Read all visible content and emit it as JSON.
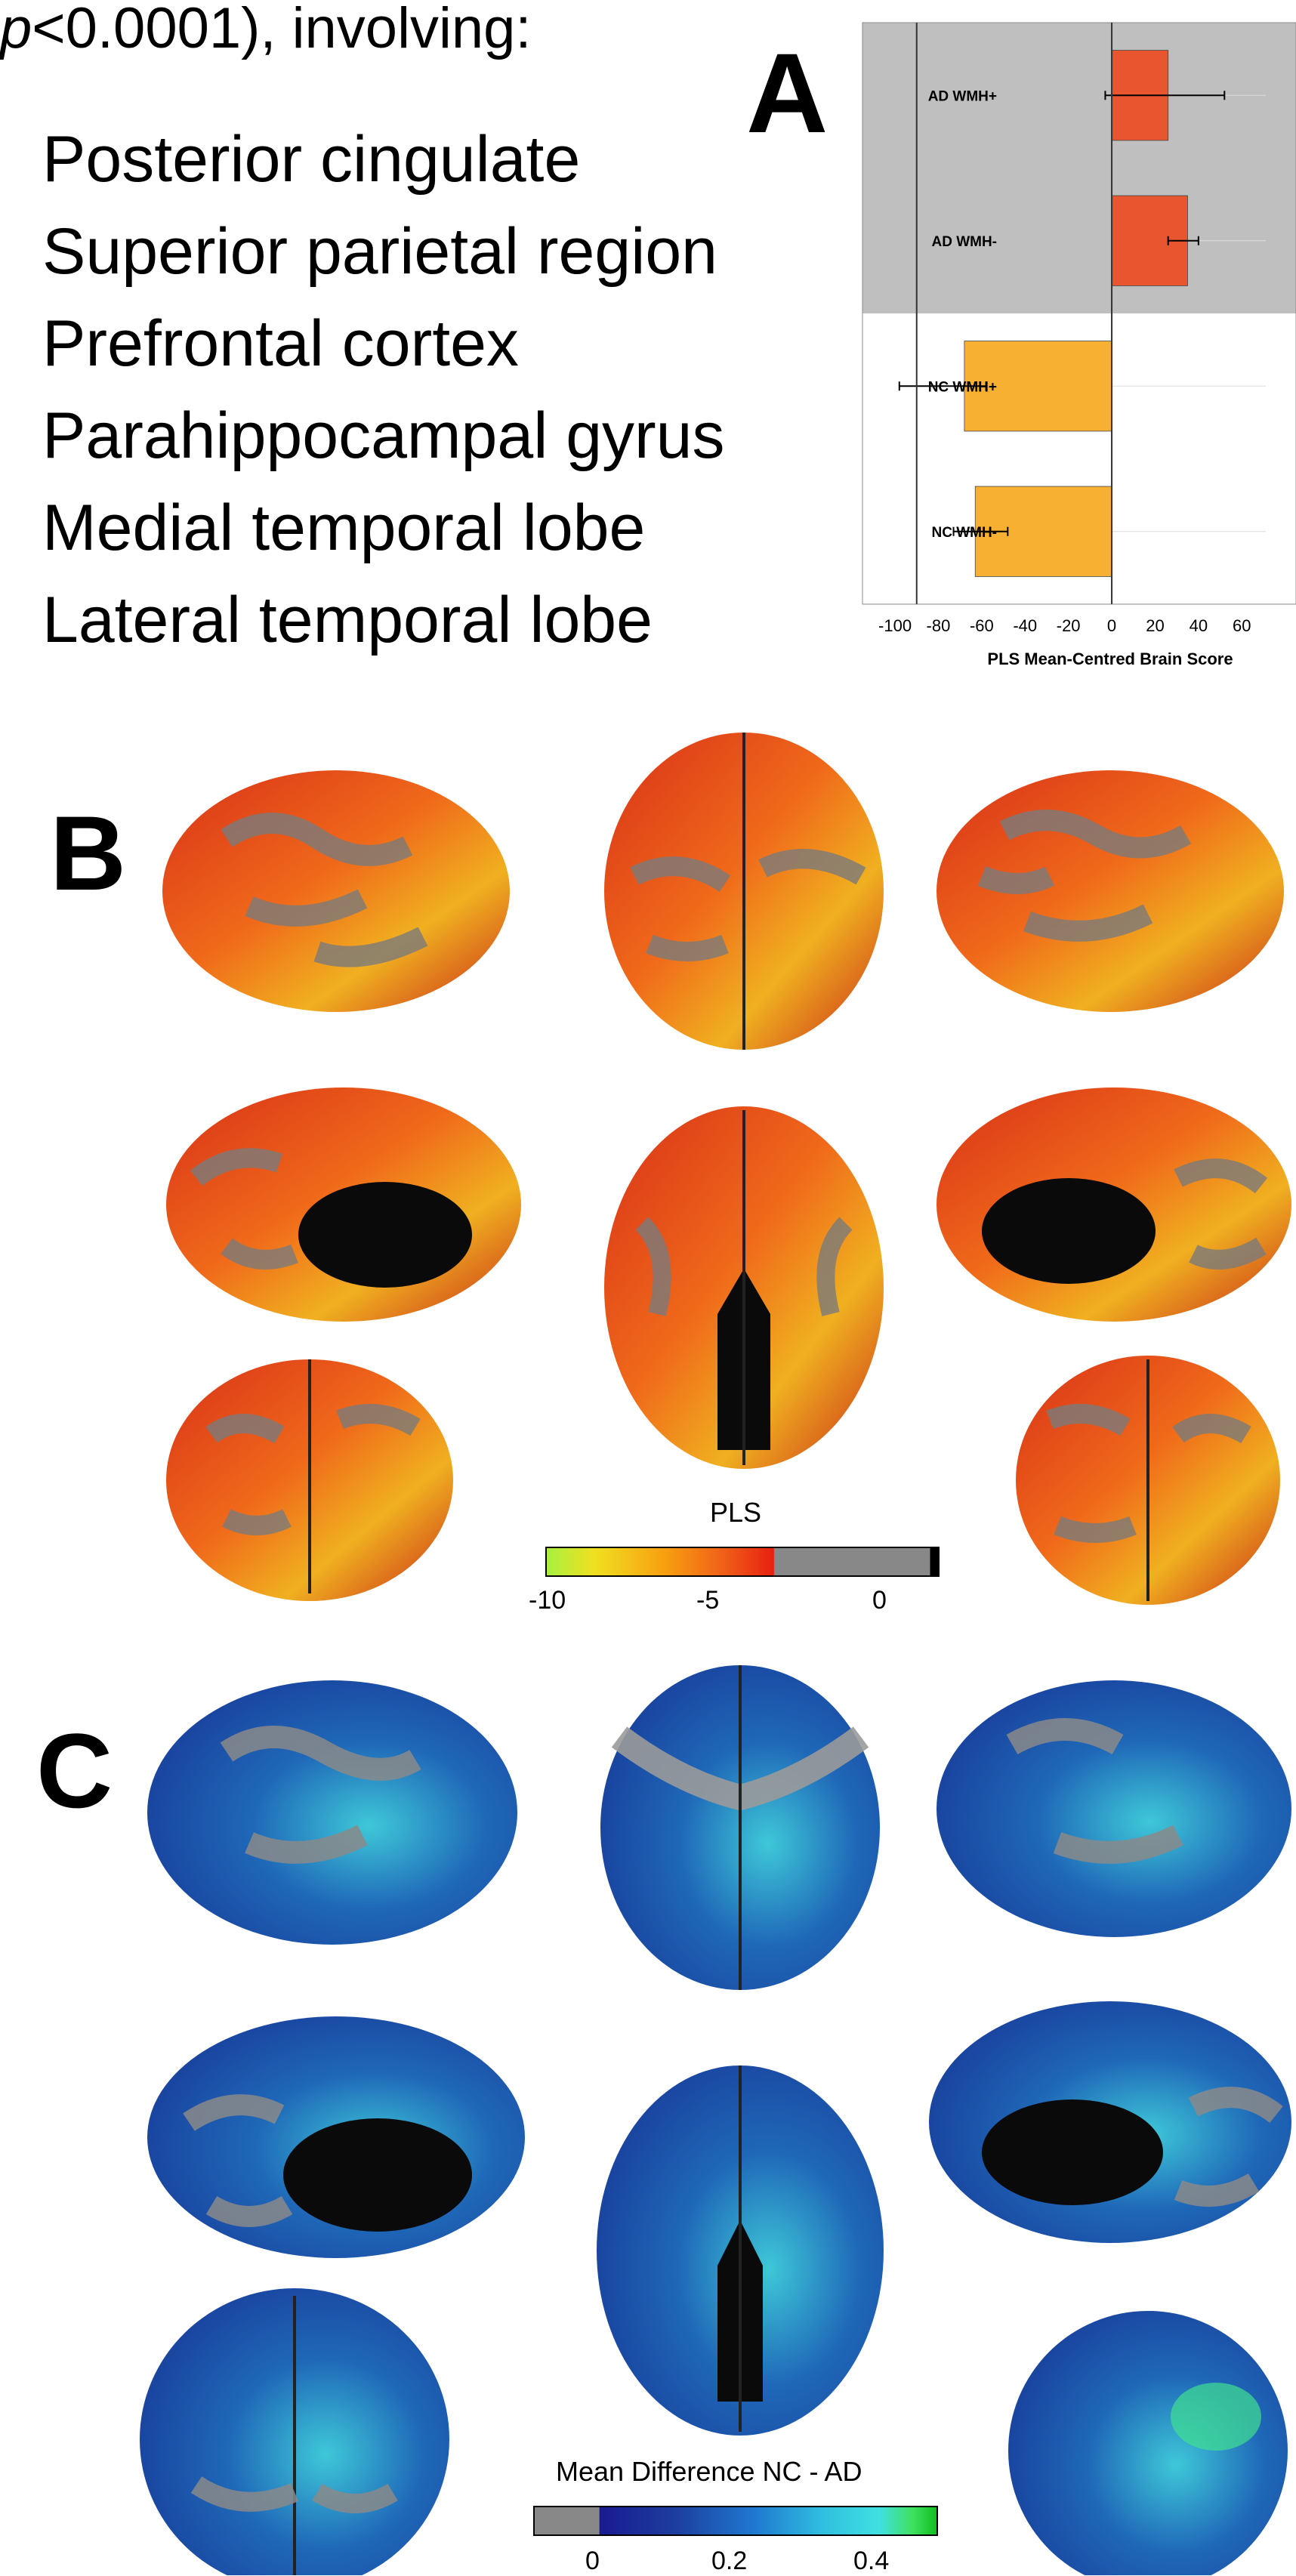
{
  "intro": {
    "p_symbol": "p",
    "text": "<0.0001), involving:"
  },
  "regions": [
    "Posterior cingulate",
    "Superior parietal region",
    "Prefrontal cortex",
    "Parahippocampal gyrus",
    "Medial temporal lobe",
    "Lateral temporal lobe"
  ],
  "panels": {
    "a": "A",
    "b": "B",
    "c": "C"
  },
  "chart_data": {
    "type": "bar",
    "orientation": "horizontal",
    "title": "",
    "categories": [
      "AD WMH+",
      "AD WMH-",
      "NC WMH+",
      "NC WMH-"
    ],
    "values": [
      26,
      35,
      -68,
      -63
    ],
    "errors": [
      [
        -3,
        52
      ],
      [
        26,
        40
      ],
      [
        -98,
        -58
      ],
      [
        -73,
        -48
      ]
    ],
    "colors": [
      "#e85630",
      "#e85630",
      "#f8b032",
      "#f8b032"
    ],
    "shaded_categories": [
      "AD WMH+",
      "AD WMH-"
    ],
    "shade_color": "#bfbfbf",
    "xlabel": "PLS Mean-Centred Brain Score",
    "ylabel": "",
    "xlim": [
      -115,
      85
    ],
    "xticks": [
      -100,
      -80,
      -60,
      -40,
      -20,
      0,
      20,
      40,
      60
    ],
    "xtick_labels": [
      "-100",
      "-80",
      "-60",
      "-40",
      "-20",
      "0",
      "20",
      "40",
      "60"
    ]
  },
  "colorbar_b": {
    "title": "PLS",
    "ticks": [
      "-10",
      "-5",
      "0"
    ]
  },
  "colorbar_c": {
    "title": "Mean Difference NC - AD",
    "ticks": [
      "0",
      "0.2",
      "0.4"
    ]
  },
  "colors": {
    "brain_gray": "#8c8c8c",
    "pls_red": "#e8301c",
    "pls_yellow": "#e8d020",
    "diff_blue": "#1c3ea0",
    "diff_cyan": "#35c8d8"
  }
}
